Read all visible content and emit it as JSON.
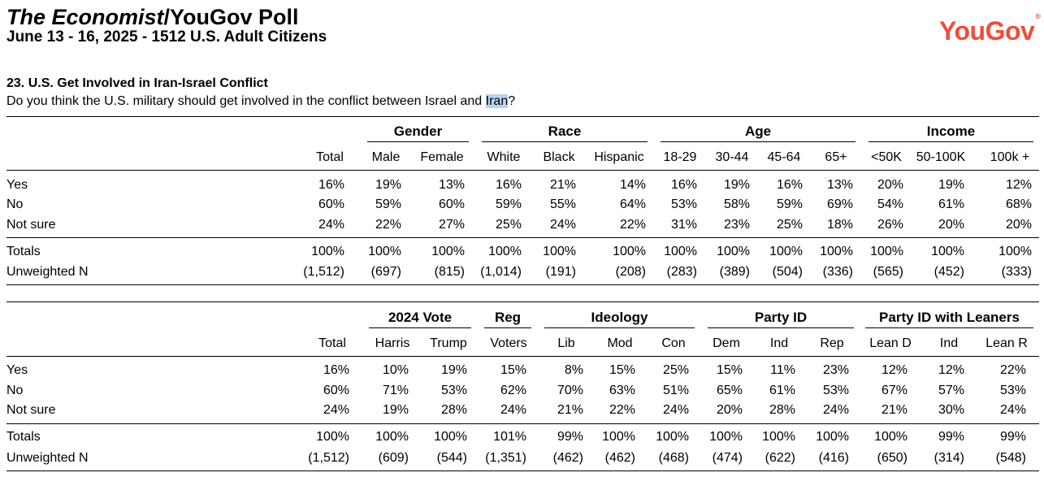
{
  "header": {
    "title_italic": "The Economist",
    "title_rest": "/YouGov Poll",
    "subtitle": "June 13 - 16, 2025 - 1512 U.S. Adult Citizens",
    "logo": "YouGov",
    "logo_mark": "®"
  },
  "question": {
    "title": "23. U.S. Get Involved in Iran-Israel Conflict",
    "text_before": "Do you think the U.S. military should get involved in the conflict between Israel and ",
    "text_highlight": "Iran",
    "text_after": "?"
  },
  "tables": [
    {
      "groups": [
        "Gender",
        "Race",
        "Age",
        "Income"
      ],
      "columns": [
        "Total",
        "Male",
        "Female",
        "White",
        "Black",
        "Hispanic",
        "18-29",
        "30-44",
        "45-64",
        "65+",
        "<50K",
        "50-100K",
        "100k +"
      ],
      "rows": [
        {
          "label": "Yes",
          "values": [
            "16%",
            "19%",
            "13%",
            "16%",
            "21%",
            "14%",
            "16%",
            "19%",
            "16%",
            "13%",
            "20%",
            "19%",
            "12%"
          ]
        },
        {
          "label": "No",
          "values": [
            "60%",
            "59%",
            "60%",
            "59%",
            "55%",
            "64%",
            "53%",
            "58%",
            "59%",
            "69%",
            "54%",
            "61%",
            "68%"
          ]
        },
        {
          "label": "Not sure",
          "values": [
            "24%",
            "22%",
            "27%",
            "25%",
            "24%",
            "22%",
            "31%",
            "23%",
            "25%",
            "18%",
            "26%",
            "20%",
            "20%"
          ]
        }
      ],
      "totals": [
        {
          "label": "Totals",
          "values": [
            "100%",
            "100%",
            "100%",
            "100%",
            "100%",
            "100%",
            "100%",
            "100%",
            "100%",
            "100%",
            "100%",
            "100%",
            "100%"
          ]
        },
        {
          "label": "Unweighted N",
          "values": [
            "(1,512)",
            "(697)",
            "(815)",
            "(1,014)",
            "(191)",
            "(208)",
            "(283)",
            "(389)",
            "(504)",
            "(336)",
            "(565)",
            "(452)",
            "(333)"
          ]
        }
      ]
    },
    {
      "groups": [
        "2024 Vote",
        "Reg",
        "Ideology",
        "Party ID",
        "Party ID with Leaners"
      ],
      "columns": [
        "Total",
        "Harris",
        "Trump",
        "Voters",
        "Lib",
        "Mod",
        "Con",
        "Dem",
        "Ind",
        "Rep",
        "Lean D",
        "Ind",
        "Lean R"
      ],
      "rows": [
        {
          "label": "Yes",
          "values": [
            "16%",
            "10%",
            "19%",
            "15%",
            "8%",
            "15%",
            "25%",
            "15%",
            "11%",
            "23%",
            "12%",
            "12%",
            "22%"
          ]
        },
        {
          "label": "No",
          "values": [
            "60%",
            "71%",
            "53%",
            "62%",
            "70%",
            "63%",
            "51%",
            "65%",
            "61%",
            "53%",
            "67%",
            "57%",
            "53%"
          ]
        },
        {
          "label": "Not sure",
          "values": [
            "24%",
            "19%",
            "28%",
            "24%",
            "21%",
            "22%",
            "24%",
            "20%",
            "28%",
            "24%",
            "21%",
            "30%",
            "24%"
          ]
        }
      ],
      "totals": [
        {
          "label": "Totals",
          "values": [
            "100%",
            "100%",
            "100%",
            "101%",
            "99%",
            "100%",
            "100%",
            "100%",
            "100%",
            "100%",
            "100%",
            "99%",
            "99%"
          ]
        },
        {
          "label": "Unweighted N",
          "values": [
            "(1,512)",
            "(609)",
            "(544)",
            "(1,351)",
            "(462)",
            "(462)",
            "(468)",
            "(474)",
            "(622)",
            "(416)",
            "(650)",
            "(314)",
            "(548)"
          ]
        }
      ]
    }
  ]
}
